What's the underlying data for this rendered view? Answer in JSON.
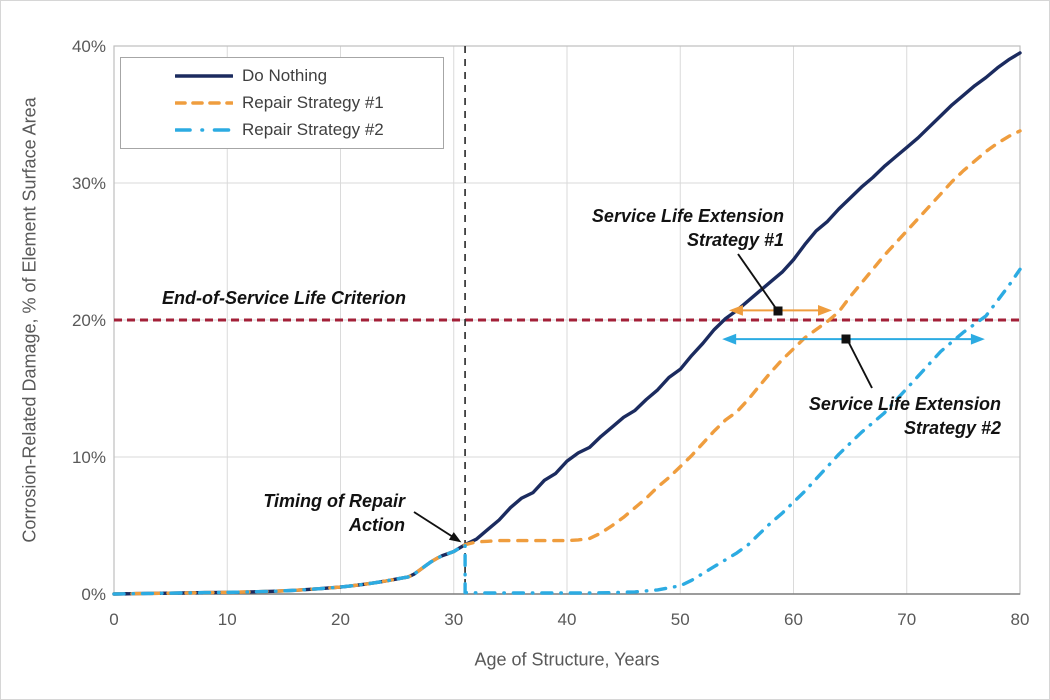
{
  "colors": {
    "navy": "#1B2B5F",
    "orange": "#EF9D3E",
    "blue": "#2CABE2",
    "red": "#A32038",
    "timing_line": "#333333",
    "grid": "#DADADA",
    "plot_border": "#BFBFBF",
    "axis_line": "#7F7F7F",
    "tick_text": "#595959",
    "annotation_text": "#121212",
    "legend_border": "#A6A6A6"
  },
  "chart_data": {
    "type": "line",
    "title": "",
    "xlabel": "Age of Structure, Years",
    "ylabel": "Corrosion-Related Damage, % of Element Surface Area",
    "xlim": [
      0,
      80
    ],
    "ylim": [
      0,
      40
    ],
    "grid": true,
    "legend_position": "top-left",
    "x_ticks": [
      {
        "value": 0,
        "label": "0"
      },
      {
        "value": 10,
        "label": "10"
      },
      {
        "value": 20,
        "label": "20"
      },
      {
        "value": 30,
        "label": "30"
      },
      {
        "value": 40,
        "label": "40"
      },
      {
        "value": 50,
        "label": "50"
      },
      {
        "value": 60,
        "label": "60"
      },
      {
        "value": 70,
        "label": "70"
      },
      {
        "value": 80,
        "label": "80"
      }
    ],
    "y_ticks": [
      {
        "value": 0,
        "label": "0%"
      },
      {
        "value": 10,
        "label": "10%"
      },
      {
        "value": 20,
        "label": "20%"
      },
      {
        "value": 30,
        "label": "30%"
      },
      {
        "value": 40,
        "label": "40%"
      }
    ],
    "series": [
      {
        "name": "Do Nothing",
        "color": "#1B2B5F",
        "style": "solid",
        "points": [
          [
            0,
            0
          ],
          [
            2,
            0.03
          ],
          [
            4,
            0.05
          ],
          [
            6,
            0.07
          ],
          [
            8,
            0.1
          ],
          [
            10,
            0.12
          ],
          [
            12,
            0.15
          ],
          [
            14,
            0.2
          ],
          [
            16,
            0.27
          ],
          [
            18,
            0.38
          ],
          [
            20,
            0.5
          ],
          [
            21,
            0.6
          ],
          [
            22,
            0.7
          ],
          [
            23,
            0.82
          ],
          [
            24,
            0.95
          ],
          [
            25,
            1.1
          ],
          [
            26,
            1.25
          ],
          [
            26.5,
            1.45
          ],
          [
            27,
            1.75
          ],
          [
            27.5,
            2.05
          ],
          [
            28,
            2.35
          ],
          [
            28.5,
            2.6
          ],
          [
            29,
            2.8
          ],
          [
            29.5,
            2.95
          ],
          [
            30,
            3.1
          ],
          [
            30.5,
            3.35
          ],
          [
            31,
            3.6
          ],
          [
            32,
            4.0
          ],
          [
            33,
            4.7
          ],
          [
            34,
            5.4
          ],
          [
            35,
            6.3
          ],
          [
            36,
            7.0
          ],
          [
            37,
            7.4
          ],
          [
            38,
            8.3
          ],
          [
            39,
            8.8
          ],
          [
            40,
            9.7
          ],
          [
            41,
            10.3
          ],
          [
            42,
            10.7
          ],
          [
            43,
            11.5
          ],
          [
            44,
            12.2
          ],
          [
            45,
            12.9
          ],
          [
            46,
            13.4
          ],
          [
            47,
            14.2
          ],
          [
            48,
            14.9
          ],
          [
            49,
            15.8
          ],
          [
            50,
            16.4
          ],
          [
            51,
            17.4
          ],
          [
            52,
            18.3
          ],
          [
            53,
            19.3
          ],
          [
            54,
            20.1
          ],
          [
            55,
            20.7
          ],
          [
            56,
            21.4
          ],
          [
            57,
            22.1
          ],
          [
            58,
            22.8
          ],
          [
            59,
            23.5
          ],
          [
            60,
            24.4
          ],
          [
            61,
            25.5
          ],
          [
            62,
            26.5
          ],
          [
            63,
            27.2
          ],
          [
            64,
            28.1
          ],
          [
            65,
            28.9
          ],
          [
            66,
            29.7
          ],
          [
            67,
            30.4
          ],
          [
            68,
            31.2
          ],
          [
            69,
            31.9
          ],
          [
            70,
            32.6
          ],
          [
            71,
            33.3
          ],
          [
            72,
            34.1
          ],
          [
            73,
            34.9
          ],
          [
            74,
            35.7
          ],
          [
            75,
            36.4
          ],
          [
            76,
            37.1
          ],
          [
            77,
            37.7
          ],
          [
            78,
            38.4
          ],
          [
            79,
            39.0
          ],
          [
            80,
            39.5
          ]
        ]
      },
      {
        "name": "Repair Strategy #1",
        "color": "#EF9D3E",
        "style": "dashed",
        "points": [
          [
            0,
            0
          ],
          [
            2,
            0.03
          ],
          [
            4,
            0.05
          ],
          [
            6,
            0.07
          ],
          [
            8,
            0.1
          ],
          [
            10,
            0.12
          ],
          [
            12,
            0.15
          ],
          [
            14,
            0.2
          ],
          [
            16,
            0.27
          ],
          [
            18,
            0.38
          ],
          [
            20,
            0.5
          ],
          [
            21,
            0.6
          ],
          [
            22,
            0.7
          ],
          [
            23,
            0.82
          ],
          [
            24,
            0.95
          ],
          [
            25,
            1.1
          ],
          [
            26,
            1.25
          ],
          [
            26.5,
            1.45
          ],
          [
            27,
            1.75
          ],
          [
            27.5,
            2.05
          ],
          [
            28,
            2.35
          ],
          [
            28.5,
            2.6
          ],
          [
            29,
            2.8
          ],
          [
            29.5,
            2.95
          ],
          [
            30,
            3.1
          ],
          [
            30.5,
            3.35
          ],
          [
            31,
            3.6
          ],
          [
            32,
            3.8
          ],
          [
            33,
            3.85
          ],
          [
            34,
            3.9
          ],
          [
            36,
            3.9
          ],
          [
            38,
            3.9
          ],
          [
            40,
            3.9
          ],
          [
            41,
            3.95
          ],
          [
            42,
            4.05
          ],
          [
            43,
            4.45
          ],
          [
            44,
            5.0
          ],
          [
            45,
            5.6
          ],
          [
            46,
            6.3
          ],
          [
            47,
            7.0
          ],
          [
            48,
            7.8
          ],
          [
            49,
            8.5
          ],
          [
            50,
            9.3
          ],
          [
            51,
            10.1
          ],
          [
            52,
            11.0
          ],
          [
            53,
            11.9
          ],
          [
            54,
            12.7
          ],
          [
            55,
            13.3
          ],
          [
            56,
            14.2
          ],
          [
            57,
            15.2
          ],
          [
            58,
            16.2
          ],
          [
            59,
            17.1
          ],
          [
            60,
            17.9
          ],
          [
            61,
            18.7
          ],
          [
            62,
            19.3
          ],
          [
            63,
            19.9
          ],
          [
            64,
            20.6
          ],
          [
            65,
            21.7
          ],
          [
            66,
            22.7
          ],
          [
            67,
            23.7
          ],
          [
            68,
            24.7
          ],
          [
            69,
            25.6
          ],
          [
            70,
            26.5
          ],
          [
            71,
            27.4
          ],
          [
            72,
            28.3
          ],
          [
            73,
            29.2
          ],
          [
            74,
            30.1
          ],
          [
            75,
            30.9
          ],
          [
            76,
            31.6
          ],
          [
            77,
            32.3
          ],
          [
            78,
            32.9
          ],
          [
            79,
            33.4
          ],
          [
            80,
            33.8
          ]
        ]
      },
      {
        "name": "Repair Strategy #2",
        "color": "#2CABE2",
        "style": "dashdot",
        "points": [
          [
            0,
            0
          ],
          [
            2,
            0.03
          ],
          [
            4,
            0.05
          ],
          [
            6,
            0.07
          ],
          [
            8,
            0.1
          ],
          [
            10,
            0.12
          ],
          [
            12,
            0.15
          ],
          [
            14,
            0.2
          ],
          [
            16,
            0.27
          ],
          [
            18,
            0.38
          ],
          [
            20,
            0.5
          ],
          [
            21,
            0.6
          ],
          [
            22,
            0.7
          ],
          [
            23,
            0.82
          ],
          [
            24,
            0.95
          ],
          [
            25,
            1.1
          ],
          [
            26,
            1.25
          ],
          [
            26.5,
            1.45
          ],
          [
            27,
            1.75
          ],
          [
            27.5,
            2.05
          ],
          [
            28,
            2.35
          ],
          [
            28.5,
            2.6
          ],
          [
            29,
            2.8
          ],
          [
            29.5,
            2.95
          ],
          [
            30,
            3.1
          ],
          [
            30.5,
            3.35
          ],
          [
            31,
            3.55
          ],
          [
            31,
            0.1
          ],
          [
            33,
            0.07
          ],
          [
            36,
            0.07
          ],
          [
            39,
            0.07
          ],
          [
            42,
            0.07
          ],
          [
            44,
            0.1
          ],
          [
            46,
            0.15
          ],
          [
            48,
            0.3
          ],
          [
            49,
            0.45
          ],
          [
            50,
            0.6
          ],
          [
            51,
            1.0
          ],
          [
            52,
            1.5
          ],
          [
            53,
            2.0
          ],
          [
            54,
            2.5
          ],
          [
            55,
            3.0
          ],
          [
            56,
            3.6
          ],
          [
            57,
            4.4
          ],
          [
            58,
            5.2
          ],
          [
            59,
            5.9
          ],
          [
            60,
            6.7
          ],
          [
            61,
            7.5
          ],
          [
            62,
            8.4
          ],
          [
            63,
            9.3
          ],
          [
            64,
            10.2
          ],
          [
            65,
            11.0
          ],
          [
            66,
            11.8
          ],
          [
            67,
            12.5
          ],
          [
            68,
            13.2
          ],
          [
            69,
            14.1
          ],
          [
            70,
            15.0
          ],
          [
            71,
            15.9
          ],
          [
            72,
            16.8
          ],
          [
            73,
            17.7
          ],
          [
            74,
            18.4
          ],
          [
            75,
            19.1
          ],
          [
            76,
            19.7
          ],
          [
            77,
            20.3
          ],
          [
            78,
            21.4
          ],
          [
            79,
            22.5
          ],
          [
            80,
            23.7
          ]
        ]
      }
    ],
    "reference_lines": [
      {
        "name": "end-of-service-criterion-line",
        "axis": "y",
        "value": 20,
        "color": "#A32038",
        "style": "dashed"
      },
      {
        "name": "timing-of-repair-line",
        "axis": "x",
        "value": 31,
        "color": "#333333",
        "style": "dashed"
      }
    ],
    "arrows": [
      {
        "name": "service-life-extension-1-arrow",
        "color": "#EF9D3E",
        "at_pct": 20.7,
        "from_year": 54.3,
        "to_year": 63.4,
        "heads": "both"
      },
      {
        "name": "service-life-extension-2-arrow",
        "color": "#2CABE2",
        "at_pct": 18.6,
        "from_year": 53.7,
        "to_year": 76.9,
        "heads": "both"
      }
    ],
    "annotations": [
      {
        "name": "end-of-service-label",
        "lines": [
          "End-of-Service Life Criterion"
        ]
      },
      {
        "name": "timing-label",
        "lines": [
          "Timing of Repair",
          "Action"
        ]
      },
      {
        "name": "sle1-label",
        "lines": [
          "Service Life Extension",
          "Strategy #1"
        ]
      },
      {
        "name": "sle2-label",
        "lines": [
          "Service Life Extension",
          "Strategy #2"
        ]
      }
    ]
  }
}
